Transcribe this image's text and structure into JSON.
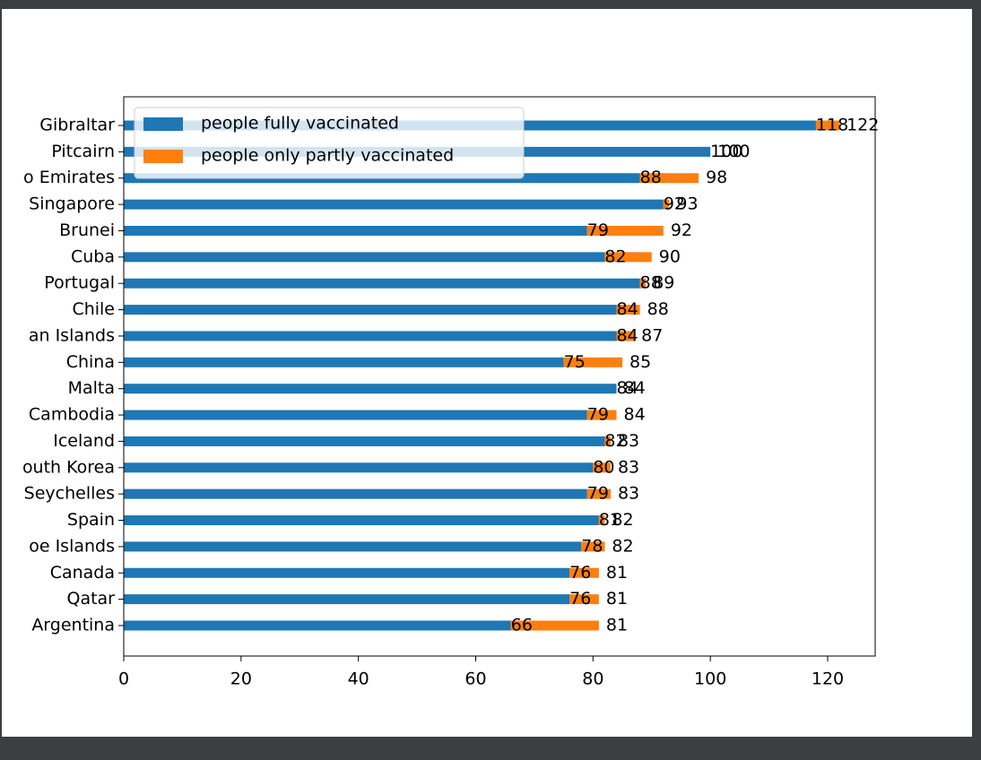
{
  "chart_data": {
    "type": "stacked-barh",
    "categories": [
      "Gibraltar",
      "Pitcairn",
      "o Emirates",
      "Singapore",
      "Brunei",
      "Cuba",
      "Portugal",
      "Chile",
      "an Islands",
      "China",
      "Malta",
      "Cambodia",
      "Iceland",
      "outh Korea",
      "Seychelles",
      "Spain",
      "oe Islands",
      "Canada",
      "Qatar",
      "Argentina"
    ],
    "series": [
      {
        "name": "people fully vaccinated",
        "color": "#1f77b4",
        "values": [
          118,
          100,
          88,
          92,
          79,
          82,
          88,
          84,
          84,
          75,
          84,
          79,
          82,
          80,
          79,
          81,
          78,
          76,
          76,
          66
        ]
      },
      {
        "name": "people only partly vaccinated",
        "color": "#ff7f0e",
        "values": [
          4,
          0,
          10,
          1,
          13,
          8,
          1,
          4,
          3,
          10,
          0,
          5,
          1,
          3,
          4,
          1,
          4,
          5,
          5,
          15
        ]
      }
    ],
    "totals": [
      122,
      100,
      98,
      93,
      92,
      90,
      89,
      88,
      87,
      85,
      84,
      84,
      83,
      83,
      83,
      82,
      82,
      81,
      81,
      81
    ],
    "xlim": [
      0,
      128.1
    ],
    "xticks": [
      0,
      20,
      40,
      60,
      80,
      100,
      120
    ],
    "legend": "upper left"
  }
}
